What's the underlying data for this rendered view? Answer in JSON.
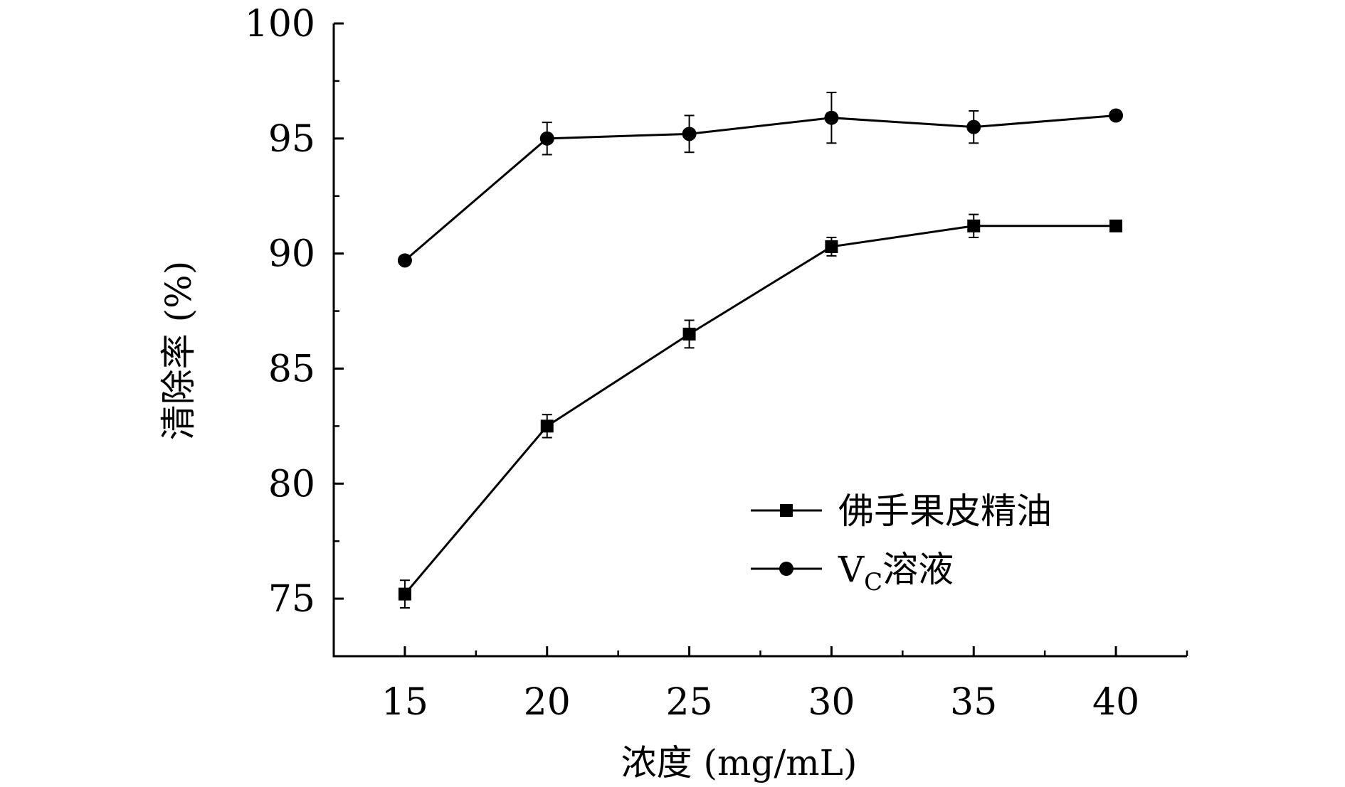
{
  "chart_data": {
    "type": "line",
    "xlabel": "浓度 (mg/mL)",
    "ylabel": "清除率 (%)",
    "x": [
      15,
      20,
      25,
      30,
      35,
      40
    ],
    "xlim": [
      12.5,
      42.5
    ],
    "ylim": [
      72.5,
      100
    ],
    "xticks": [
      "15",
      "20",
      "25",
      "30",
      "35",
      "40"
    ],
    "yticks": [
      "75",
      "80",
      "85",
      "90",
      "95",
      "100"
    ],
    "grid": false,
    "legend_position": "lower-right",
    "series": [
      {
        "name": "佛手果皮精油",
        "marker": "square",
        "values": [
          75.2,
          82.5,
          86.5,
          90.3,
          91.2,
          91.2
        ],
        "errors": [
          0.6,
          0.5,
          0.6,
          0.4,
          0.5,
          0.2
        ]
      },
      {
        "name_main": "V",
        "name_sub": "C",
        "name_suffix": "溶液",
        "marker": "circle",
        "values": [
          89.7,
          95.0,
          95.2,
          95.9,
          95.5,
          96.0
        ],
        "errors": [
          0.15,
          0.7,
          0.8,
          1.1,
          0.7,
          0.2
        ]
      }
    ]
  }
}
